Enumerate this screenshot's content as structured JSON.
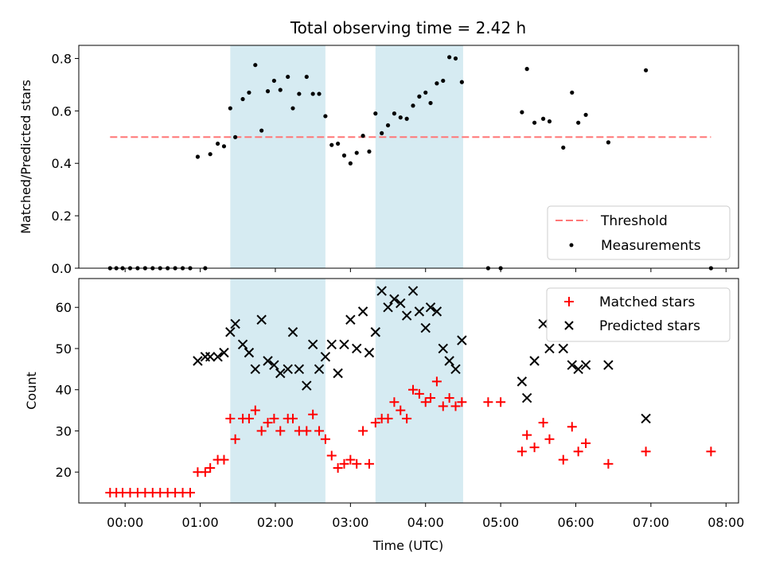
{
  "chart_data": [
    {
      "type": "scatter",
      "title": "Total observing time = 2.42 h",
      "xlabel": "",
      "ylabel": "Matched/Predicted stars",
      "xlim": [
        "23:23",
        "08:10"
      ],
      "ylim": [
        0,
        0.85
      ],
      "y_ticks": [
        0.0,
        0.2,
        0.4,
        0.6,
        0.8
      ],
      "x_ticks": [
        "00:00",
        "01:00",
        "02:00",
        "03:00",
        "04:00",
        "05:00",
        "06:00",
        "07:00",
        "08:00"
      ],
      "shaded_intervals": [
        [
          "01:24",
          "02:40"
        ],
        [
          "03:20",
          "04:30"
        ]
      ],
      "threshold": {
        "name": "Threshold",
        "value": 0.5,
        "x_range": [
          "23:48",
          "07:48"
        ],
        "color": "#ff7777"
      },
      "legend_placement": "lower-right",
      "series": [
        {
          "name": "Measurements",
          "color": "#000000",
          "points": [
            [
              "23:48",
              0.0
            ],
            [
              "23:53",
              0.0
            ],
            [
              "23:58",
              0.0
            ],
            [
              "00:04",
              0.0
            ],
            [
              "00:10",
              0.0
            ],
            [
              "00:16",
              0.0
            ],
            [
              "00:22",
              0.0
            ],
            [
              "00:28",
              0.0
            ],
            [
              "00:34",
              0.0
            ],
            [
              "00:40",
              0.0
            ],
            [
              "00:46",
              0.0
            ],
            [
              "00:52",
              0.0
            ],
            [
              "00:58",
              0.425
            ],
            [
              "01:04",
              0.0
            ],
            [
              "01:08",
              0.435
            ],
            [
              "01:14",
              0.475
            ],
            [
              "01:19",
              0.465
            ],
            [
              "01:24",
              0.61
            ],
            [
              "01:28",
              0.5
            ],
            [
              "01:34",
              0.645
            ],
            [
              "01:39",
              0.67
            ],
            [
              "01:44",
              0.775
            ],
            [
              "01:49",
              0.525
            ],
            [
              "01:54",
              0.675
            ],
            [
              "01:59",
              0.715
            ],
            [
              "02:04",
              0.68
            ],
            [
              "02:10",
              0.73
            ],
            [
              "02:14",
              0.61
            ],
            [
              "02:19",
              0.665
            ],
            [
              "02:25",
              0.73
            ],
            [
              "02:30",
              0.665
            ],
            [
              "02:35",
              0.665
            ],
            [
              "02:40",
              0.58
            ],
            [
              "02:45",
              0.47
            ],
            [
              "02:50",
              0.475
            ],
            [
              "02:55",
              0.43
            ],
            [
              "03:00",
              0.4
            ],
            [
              "03:05",
              0.44
            ],
            [
              "03:10",
              0.505
            ],
            [
              "03:15",
              0.445
            ],
            [
              "03:20",
              0.59
            ],
            [
              "03:25",
              0.515
            ],
            [
              "03:30",
              0.545
            ],
            [
              "03:35",
              0.59
            ],
            [
              "03:40",
              0.575
            ],
            [
              "03:45",
              0.57
            ],
            [
              "03:50",
              0.62
            ],
            [
              "03:55",
              0.655
            ],
            [
              "04:00",
              0.67
            ],
            [
              "04:04",
              0.63
            ],
            [
              "04:09",
              0.705
            ],
            [
              "04:14",
              0.715
            ],
            [
              "04:19",
              0.805
            ],
            [
              "04:24",
              0.8
            ],
            [
              "04:29",
              0.71
            ],
            [
              "04:50",
              0.0
            ],
            [
              "05:00",
              0.0
            ],
            [
              "05:17",
              0.595
            ],
            [
              "05:21",
              0.76
            ],
            [
              "05:27",
              0.555
            ],
            [
              "05:34",
              0.57
            ],
            [
              "05:39",
              0.56
            ],
            [
              "05:50",
              0.46
            ],
            [
              "05:57",
              0.67
            ],
            [
              "06:02",
              0.555
            ],
            [
              "06:08",
              0.585
            ],
            [
              "06:26",
              0.48
            ],
            [
              "06:56",
              0.755
            ],
            [
              "07:48",
              0.0
            ]
          ]
        }
      ]
    },
    {
      "type": "scatter",
      "title": "",
      "xlabel": "Time (UTC)",
      "ylabel": "Count",
      "xlim": [
        "23:23",
        "08:10"
      ],
      "ylim": [
        12.5,
        67
      ],
      "y_ticks": [
        20,
        30,
        40,
        50,
        60
      ],
      "x_ticks": [
        "00:00",
        "01:00",
        "02:00",
        "03:00",
        "04:00",
        "05:00",
        "06:00",
        "07:00",
        "08:00"
      ],
      "shaded_intervals": [
        [
          "01:24",
          "02:40"
        ],
        [
          "03:20",
          "04:30"
        ]
      ],
      "legend_placement": "upper-right",
      "series": [
        {
          "name": "Matched stars",
          "color": "#ff0000",
          "marker": "plus",
          "points": [
            [
              "23:48",
              15
            ],
            [
              "23:53",
              15
            ],
            [
              "23:58",
              15
            ],
            [
              "00:04",
              15
            ],
            [
              "00:10",
              15
            ],
            [
              "00:16",
              15
            ],
            [
              "00:22",
              15
            ],
            [
              "00:28",
              15
            ],
            [
              "00:34",
              15
            ],
            [
              "00:40",
              15
            ],
            [
              "00:46",
              15
            ],
            [
              "00:52",
              15
            ],
            [
              "00:58",
              20
            ],
            [
              "01:04",
              20
            ],
            [
              "01:08",
              21
            ],
            [
              "01:14",
              23
            ],
            [
              "01:19",
              23
            ],
            [
              "01:24",
              33
            ],
            [
              "01:28",
              28
            ],
            [
              "01:34",
              33
            ],
            [
              "01:39",
              33
            ],
            [
              "01:44",
              35
            ],
            [
              "01:49",
              30
            ],
            [
              "01:54",
              32
            ],
            [
              "01:59",
              33
            ],
            [
              "02:04",
              30
            ],
            [
              "02:10",
              33
            ],
            [
              "02:14",
              33
            ],
            [
              "02:19",
              30
            ],
            [
              "02:25",
              30
            ],
            [
              "02:30",
              34
            ],
            [
              "02:35",
              30
            ],
            [
              "02:40",
              28
            ],
            [
              "02:45",
              24
            ],
            [
              "02:50",
              21
            ],
            [
              "02:55",
              22
            ],
            [
              "03:00",
              23
            ],
            [
              "03:05",
              22
            ],
            [
              "03:10",
              30
            ],
            [
              "03:15",
              22
            ],
            [
              "03:20",
              32
            ],
            [
              "03:25",
              33
            ],
            [
              "03:30",
              33
            ],
            [
              "03:35",
              37
            ],
            [
              "03:40",
              35
            ],
            [
              "03:45",
              33
            ],
            [
              "03:50",
              40
            ],
            [
              "03:55",
              39
            ],
            [
              "04:00",
              37
            ],
            [
              "04:04",
              38
            ],
            [
              "04:09",
              42
            ],
            [
              "04:14",
              36
            ],
            [
              "04:19",
              38
            ],
            [
              "04:24",
              36
            ],
            [
              "04:29",
              37
            ],
            [
              "04:50",
              37
            ],
            [
              "05:00",
              37
            ],
            [
              "05:17",
              25
            ],
            [
              "05:21",
              29
            ],
            [
              "05:27",
              26
            ],
            [
              "05:34",
              32
            ],
            [
              "05:39",
              28
            ],
            [
              "05:50",
              23
            ],
            [
              "05:57",
              31
            ],
            [
              "06:02",
              25
            ],
            [
              "06:08",
              27
            ],
            [
              "06:26",
              22
            ],
            [
              "06:56",
              25
            ],
            [
              "07:48",
              25
            ]
          ]
        },
        {
          "name": "Predicted stars",
          "color": "#000000",
          "marker": "x",
          "points": [
            [
              "00:58",
              47
            ],
            [
              "01:04",
              48
            ],
            [
              "01:08",
              48
            ],
            [
              "01:14",
              48
            ],
            [
              "01:19",
              49
            ],
            [
              "01:24",
              54
            ],
            [
              "01:28",
              56
            ],
            [
              "01:34",
              51
            ],
            [
              "01:39",
              49
            ],
            [
              "01:44",
              45
            ],
            [
              "01:49",
              57
            ],
            [
              "01:54",
              47
            ],
            [
              "01:59",
              46
            ],
            [
              "02:04",
              44
            ],
            [
              "02:10",
              45
            ],
            [
              "02:14",
              54
            ],
            [
              "02:19",
              45
            ],
            [
              "02:25",
              41
            ],
            [
              "02:30",
              51
            ],
            [
              "02:35",
              45
            ],
            [
              "02:40",
              48
            ],
            [
              "02:45",
              51
            ],
            [
              "02:50",
              44
            ],
            [
              "02:55",
              51
            ],
            [
              "03:00",
              57
            ],
            [
              "03:05",
              50
            ],
            [
              "03:10",
              59
            ],
            [
              "03:15",
              49
            ],
            [
              "03:20",
              54
            ],
            [
              "03:25",
              64
            ],
            [
              "03:30",
              60
            ],
            [
              "03:35",
              62
            ],
            [
              "03:40",
              61
            ],
            [
              "03:45",
              58
            ],
            [
              "03:50",
              64
            ],
            [
              "03:55",
              59
            ],
            [
              "04:00",
              55
            ],
            [
              "04:04",
              60
            ],
            [
              "04:09",
              59
            ],
            [
              "04:14",
              50
            ],
            [
              "04:19",
              47
            ],
            [
              "04:24",
              45
            ],
            [
              "04:29",
              52
            ],
            [
              "05:17",
              42
            ],
            [
              "05:21",
              38
            ],
            [
              "05:27",
              47
            ],
            [
              "05:34",
              56
            ],
            [
              "05:39",
              50
            ],
            [
              "05:50",
              50
            ],
            [
              "05:57",
              46
            ],
            [
              "06:02",
              45
            ],
            [
              "06:08",
              46
            ],
            [
              "06:26",
              46
            ],
            [
              "06:56",
              33
            ]
          ]
        }
      ]
    }
  ]
}
